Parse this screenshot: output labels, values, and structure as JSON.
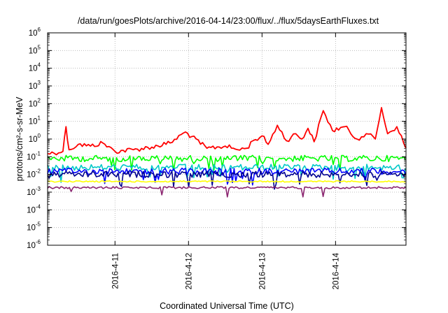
{
  "chart_data": {
    "type": "line",
    "title": "/data/run/goesPlots/archive/2016-04-14/23:00/flux/../flux/5daysEarthFluxes.txt",
    "xlabel": "Coordinated Universal Time (UTC)",
    "ylabel": "protons/cm²-s-sr-MeV",
    "y_scale": "log",
    "ylim": [
      1e-06,
      1000000.0
    ],
    "y_ticks": [
      {
        "base": "10",
        "exp": "-6"
      },
      {
        "base": "10",
        "exp": "-5"
      },
      {
        "base": "10",
        "exp": "-4"
      },
      {
        "base": "10",
        "exp": "-3"
      },
      {
        "base": "10",
        "exp": "-2"
      },
      {
        "base": "10",
        "exp": "-1"
      },
      {
        "base": "10",
        "exp": "0"
      },
      {
        "base": "10",
        "exp": "1"
      },
      {
        "base": "10",
        "exp": "2"
      },
      {
        "base": "10",
        "exp": "3"
      },
      {
        "base": "10",
        "exp": "4"
      },
      {
        "base": "10",
        "exp": "5"
      },
      {
        "base": "10",
        "exp": "6"
      }
    ],
    "xlim": [
      "2016-04-10 02:00",
      "2016-04-14 23:00"
    ],
    "x_ticks": [
      "2016-4-11",
      "2016-4-12",
      "2016-4-13",
      "2016-4-14"
    ],
    "grid": true,
    "series": [
      {
        "color": "#ff0000",
        "x": [
          "2016-04-10 02:00",
          "2016-04-10 07:00",
          "2016-04-10 08:00",
          "2016-04-10 09:00",
          "2016-04-10 12:00",
          "2016-04-10 16:00",
          "2016-04-10 20:00",
          "2016-04-11 00:00",
          "2016-04-11 06:00",
          "2016-04-11 12:00",
          "2016-04-11 18:00",
          "2016-04-11 23:00",
          "2016-04-12 06:00",
          "2016-04-12 12:00",
          "2016-04-12 16:00",
          "2016-04-12 19:00",
          "2016-04-12 21:00",
          "2016-04-13 00:00",
          "2016-04-13 02:00",
          "2016-04-13 05:00",
          "2016-04-13 08:00",
          "2016-04-13 11:00",
          "2016-04-13 13:00",
          "2016-04-13 15:00",
          "2016-04-13 17:00",
          "2016-04-13 20:00",
          "2016-04-13 23:00",
          "2016-04-14 03:00",
          "2016-04-14 07:00",
          "2016-04-14 10:00",
          "2016-04-14 13:00",
          "2016-04-14 15:00",
          "2016-04-14 17:00",
          "2016-04-14 20:00",
          "2016-04-14 23:00"
        ],
        "values": [
          0.15,
          0.2,
          5,
          0.25,
          0.5,
          0.4,
          0.6,
          0.2,
          0.25,
          0.35,
          0.6,
          2.5,
          0.3,
          0.4,
          0.25,
          0.3,
          0.8,
          1.5,
          0.5,
          6,
          0.8,
          2,
          1,
          4,
          0.7,
          40,
          3,
          5,
          1,
          2,
          1,
          60,
          2,
          5,
          0.3
        ]
      },
      {
        "color": "#00ff00",
        "x": [
          "2016-04-10 02:00",
          "2016-04-14 23:00"
        ],
        "values": [
          0.08,
          0.08
        ]
      },
      {
        "color": "#00c8c8",
        "x": [
          "2016-04-10 02:00",
          "2016-04-14 23:00"
        ],
        "values": [
          0.025,
          0.025
        ]
      },
      {
        "color": "#0000ff",
        "x": [
          "2016-04-10 02:00",
          "2016-04-14 23:00"
        ],
        "values": [
          0.015,
          0.015
        ]
      },
      {
        "color": "#000090",
        "x": [
          "2016-04-10 02:00",
          "2016-04-14 23:00"
        ],
        "values": [
          0.01,
          0.01
        ]
      },
      {
        "color": "#ffff00",
        "x": [
          "2016-04-10 02:00",
          "2016-04-14 23:00"
        ],
        "values": [
          0.004,
          0.004
        ]
      },
      {
        "color": "#8b2570",
        "x": [
          "2016-04-10 02:00",
          "2016-04-14 23:00"
        ],
        "values": [
          0.0018,
          0.0018
        ]
      }
    ]
  }
}
